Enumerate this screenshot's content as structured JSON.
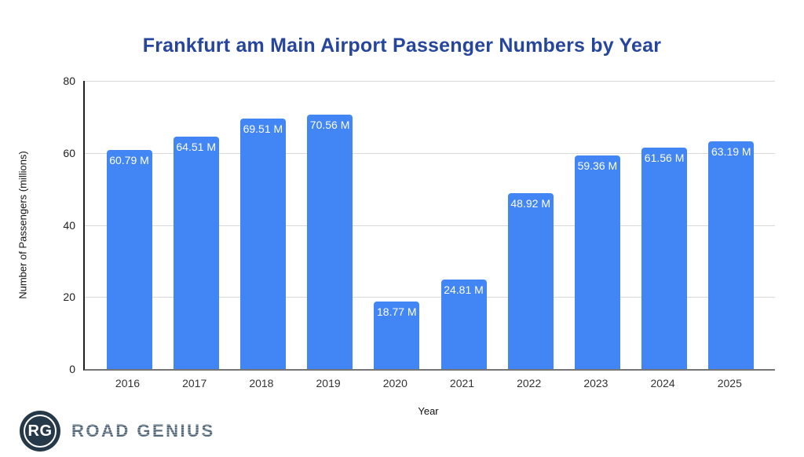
{
  "page": {
    "background_color": "#ffffff"
  },
  "chart_data": {
    "type": "bar",
    "title": "Frankfurt am Main Airport Passenger Numbers by Year",
    "title_color": "#26459C",
    "xlabel": "Year",
    "ylabel": "Number of Passengers (millions)",
    "categories": [
      "2016",
      "2017",
      "2018",
      "2019",
      "2020",
      "2021",
      "2022",
      "2023",
      "2024",
      "2025"
    ],
    "values": [
      60.79,
      64.51,
      69.51,
      70.56,
      18.77,
      24.81,
      48.92,
      59.36,
      61.56,
      63.19
    ],
    "bar_labels": [
      "60.79 M",
      "64.51 M",
      "69.51 M",
      "70.56 M",
      "18.77 M",
      "24.81 M",
      "48.92 M",
      "59.36 M",
      "61.56 M",
      "63.19 M"
    ],
    "ylim": [
      0,
      80
    ],
    "yticks": [
      0,
      20,
      40,
      60,
      80
    ],
    "grid": true,
    "legend_position": "none",
    "bar_color": "#4285F4",
    "bar_label_color": "#ffffff",
    "gridline_color": "#d9d9d9"
  },
  "branding": {
    "logo_monogram": "RG",
    "logo_text": "ROAD GENIUS",
    "logo_circle_color": "#263949",
    "logo_text_color": "#55687A"
  }
}
